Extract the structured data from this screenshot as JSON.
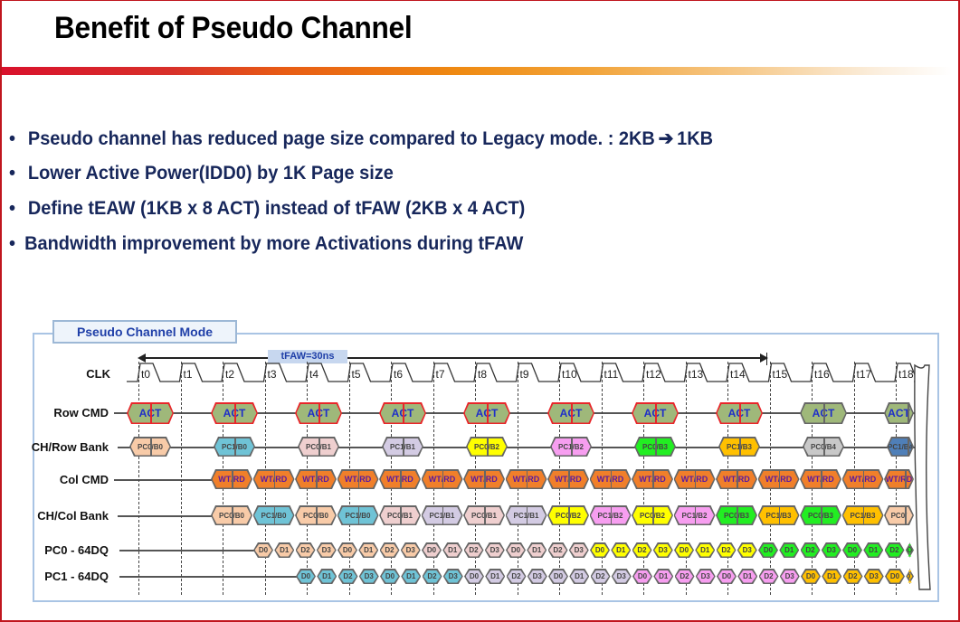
{
  "slide": {
    "title": "Benefit of Pseudo Channel",
    "colors": {
      "border": "#c0161e",
      "bullet_text": "#17275b",
      "accent_blue": "#1f3fa8"
    }
  },
  "bullets": [
    {
      "text": "Pseudo channel has reduced page size compared to Legacy mode. : 2KB",
      "arrow": "➔",
      "suffix": "1KB"
    },
    {
      "text": "Lower Active Power(IDD0) by 1K Page size"
    },
    {
      "text": "Define tEAW (1KB x 8 ACT) instead of tFAW (2KB x 4 ACT)"
    },
    {
      "text": "Bandwidth improvement by more Activations during tFAW"
    }
  ],
  "diagram": {
    "mode_label": "Pseudo Channel Mode",
    "tfaw_label": "tFAW=30ns",
    "signals": {
      "clk": "CLK",
      "row_cmd": "Row CMD",
      "ch_row_bank": "CH/Row Bank",
      "col_cmd": "Col CMD",
      "ch_col_bank": "CH/Col Bank",
      "pc0_dq": "PC0 - 64DQ",
      "pc1_dq": "PC1 - 64DQ"
    },
    "clock_ticks": [
      "t0",
      "t1",
      "t2",
      "t3",
      "t4",
      "t5",
      "t6",
      "t7",
      "t8",
      "t9",
      "t10",
      "t11",
      "t12",
      "t13",
      "t14",
      "t15",
      "t16",
      "t17",
      "t18"
    ],
    "row_cmd": [
      {
        "label": "ACT",
        "tick": 0,
        "in_tfaw": true
      },
      {
        "label": "ACT",
        "tick": 2,
        "in_tfaw": true
      },
      {
        "label": "ACT",
        "tick": 4,
        "in_tfaw": true
      },
      {
        "label": "ACT",
        "tick": 6,
        "in_tfaw": true
      },
      {
        "label": "ACT",
        "tick": 8,
        "in_tfaw": true
      },
      {
        "label": "ACT",
        "tick": 10,
        "in_tfaw": true
      },
      {
        "label": "ACT",
        "tick": 12,
        "in_tfaw": true
      },
      {
        "label": "ACT",
        "tick": 14,
        "in_tfaw": true
      },
      {
        "label": "ACT",
        "tick": 16,
        "in_tfaw": false
      },
      {
        "label": "ACT",
        "tick": 18,
        "in_tfaw": false
      }
    ],
    "ch_row_bank": [
      {
        "label": "PC0/B0",
        "color": "#f8cba8"
      },
      {
        "label": "PC1/B0",
        "color": "#6fc3d6"
      },
      {
        "label": "PC0/B1",
        "color": "#efcfcf"
      },
      {
        "label": "PC1/B1",
        "color": "#d3cbe3"
      },
      {
        "label": "PC0/B2",
        "color": "#ffff00"
      },
      {
        "label": "PC1/B2",
        "color": "#f79ef0"
      },
      {
        "label": "PC0/B3",
        "color": "#22ee22"
      },
      {
        "label": "PC1/B3",
        "color": "#ffc000"
      },
      {
        "label": "PC0/B4",
        "color": "#c8c8c8"
      },
      {
        "label": "PC1/B4",
        "color": "#4f7fb8"
      }
    ],
    "col_cmd": {
      "label": "WT/RD",
      "count": 17,
      "color": "#f07f2a"
    },
    "ch_col_bank": [
      {
        "label": "PC0/B0",
        "color": "#f8cba8"
      },
      {
        "label": "PC1/B0",
        "color": "#6fc3d6"
      },
      {
        "label": "PC0/B0",
        "color": "#f8cba8"
      },
      {
        "label": "PC1/B0",
        "color": "#6fc3d6"
      },
      {
        "label": "PC0/B1",
        "color": "#efcfcf"
      },
      {
        "label": "PC1/B1",
        "color": "#d3cbe3"
      },
      {
        "label": "PC0/B1",
        "color": "#efcfcf"
      },
      {
        "label": "PC1/B1",
        "color": "#d3cbe3"
      },
      {
        "label": "PC0/B2",
        "color": "#ffff00"
      },
      {
        "label": "PC1/B2",
        "color": "#f79ef0"
      },
      {
        "label": "PC0/B2",
        "color": "#ffff00"
      },
      {
        "label": "PC1/B2",
        "color": "#f79ef0"
      },
      {
        "label": "PC0/B3",
        "color": "#22ee22"
      },
      {
        "label": "PC1/B3",
        "color": "#ffc000"
      },
      {
        "label": "PC0/B3",
        "color": "#22ee22"
      },
      {
        "label": "PC1/B3",
        "color": "#ffc000"
      },
      {
        "label": "PC0/",
        "color": "#f8cba8"
      }
    ],
    "pc0_dq": {
      "groups": [
        {
          "color": "#f8cba8",
          "cells": [
            "D0",
            "D1",
            "D2",
            "D3",
            "D0",
            "D1",
            "D2",
            "D3"
          ]
        },
        {
          "color": "#efcfcf",
          "cells": [
            "D0",
            "D1",
            "D2",
            "D3",
            "D0",
            "D1",
            "D2",
            "D3"
          ]
        },
        {
          "color": "#ffff00",
          "cells": [
            "D0",
            "D1",
            "D2",
            "D3",
            "D0",
            "D1",
            "D2",
            "D3"
          ]
        },
        {
          "color": "#22ee22",
          "cells": [
            "D0",
            "D1",
            "D2",
            "D3",
            "D0",
            "D1",
            "D2",
            "D"
          ]
        }
      ]
    },
    "pc1_dq": {
      "groups": [
        {
          "color": "#6fc3d6",
          "cells": [
            "D0",
            "D1",
            "D2",
            "D3",
            "D0",
            "D1",
            "D2",
            "D3"
          ]
        },
        {
          "color": "#d3cbe3",
          "cells": [
            "D0",
            "D1",
            "D2",
            "D3",
            "D0",
            "D1",
            "D2",
            "D3"
          ]
        },
        {
          "color": "#f79ef0",
          "cells": [
            "D0",
            "D1",
            "D2",
            "D3",
            "D0",
            "D1",
            "D2",
            "D3"
          ]
        },
        {
          "color": "#ffc000",
          "cells": [
            "D0",
            "D1",
            "D2",
            "D3",
            "D0",
            "D1"
          ]
        }
      ]
    }
  }
}
